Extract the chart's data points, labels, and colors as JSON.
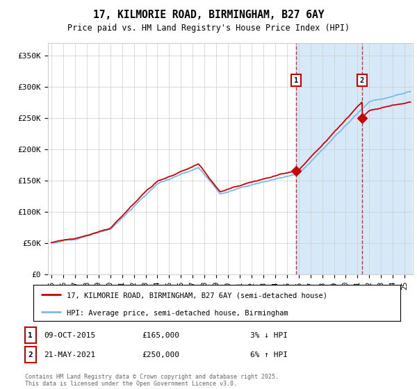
{
  "title": "17, KILMORIE ROAD, BIRMINGHAM, B27 6AY",
  "subtitle": "Price paid vs. HM Land Registry's House Price Index (HPI)",
  "ylim": [
    0,
    370000
  ],
  "yticks": [
    0,
    50000,
    100000,
    150000,
    200000,
    250000,
    300000,
    350000
  ],
  "ytick_labels": [
    "£0",
    "£50K",
    "£100K",
    "£150K",
    "£200K",
    "£250K",
    "£300K",
    "£350K"
  ],
  "line1_color": "#cc0000",
  "line2_color": "#7db8e8",
  "shade_color": "#d6e9f8",
  "marker1_date": 2015.78,
  "marker1_value": 165000,
  "marker2_date": 2021.38,
  "marker2_value": 250000,
  "legend_label1": "17, KILMORIE ROAD, BIRMINGHAM, B27 6AY (semi-detached house)",
  "legend_label2": "HPI: Average price, semi-detached house, Birmingham",
  "annotation1_num": "1",
  "annotation1_date": "09-OCT-2015",
  "annotation1_price": "£165,000",
  "annotation1_hpi": "3% ↓ HPI",
  "annotation2_num": "2",
  "annotation2_date": "21-MAY-2021",
  "annotation2_price": "£250,000",
  "annotation2_hpi": "6% ↑ HPI",
  "footer": "Contains HM Land Registry data © Crown copyright and database right 2025.\nThis data is licensed under the Open Government Licence v3.0.",
  "background_color": "#ffffff",
  "grid_color": "#cccccc"
}
